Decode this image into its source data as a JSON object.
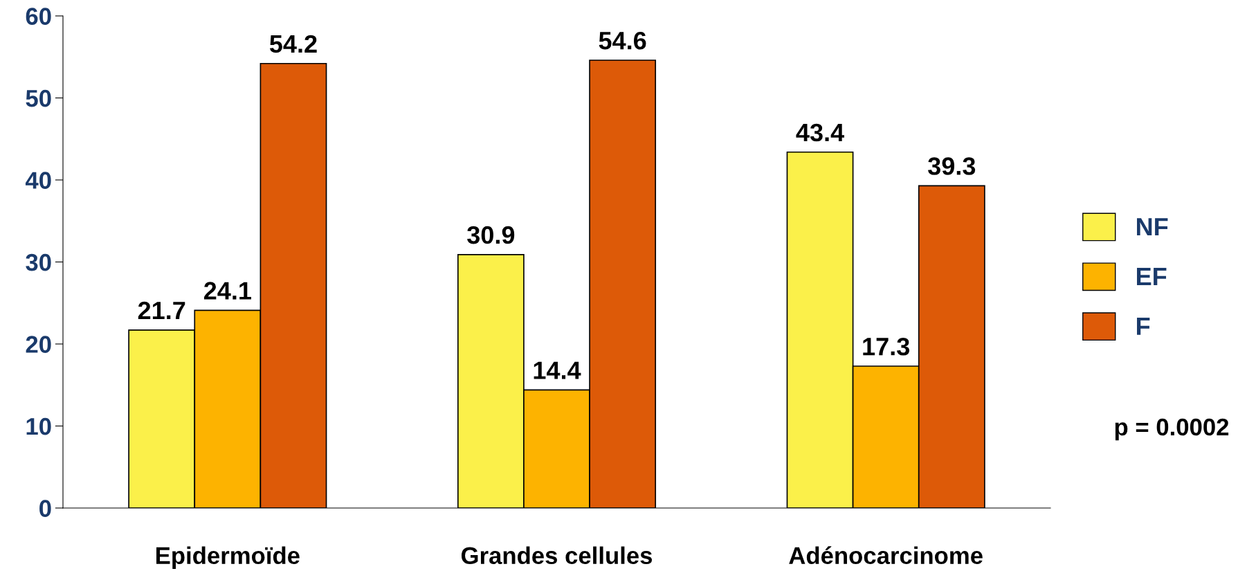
{
  "chart_data": {
    "type": "bar",
    "categories": [
      "Epidermoïde",
      "Grandes cellules",
      "Adénocarcinome"
    ],
    "series": [
      {
        "name": "NF",
        "color": "#fbf04a",
        "values": [
          21.7,
          30.9,
          43.4
        ]
      },
      {
        "name": "EF",
        "color": "#fdb300",
        "values": [
          24.1,
          14.4,
          17.3
        ]
      },
      {
        "name": "F",
        "color": "#dd5a08",
        "values": [
          54.2,
          54.6,
          39.3
        ]
      }
    ],
    "ylim": [
      0,
      60
    ],
    "yticks": [
      0,
      10,
      20,
      30,
      40,
      50,
      60
    ],
    "grid": false,
    "legend": "right",
    "data_labels": true,
    "annotations": [
      "p = 0.0002"
    ]
  }
}
